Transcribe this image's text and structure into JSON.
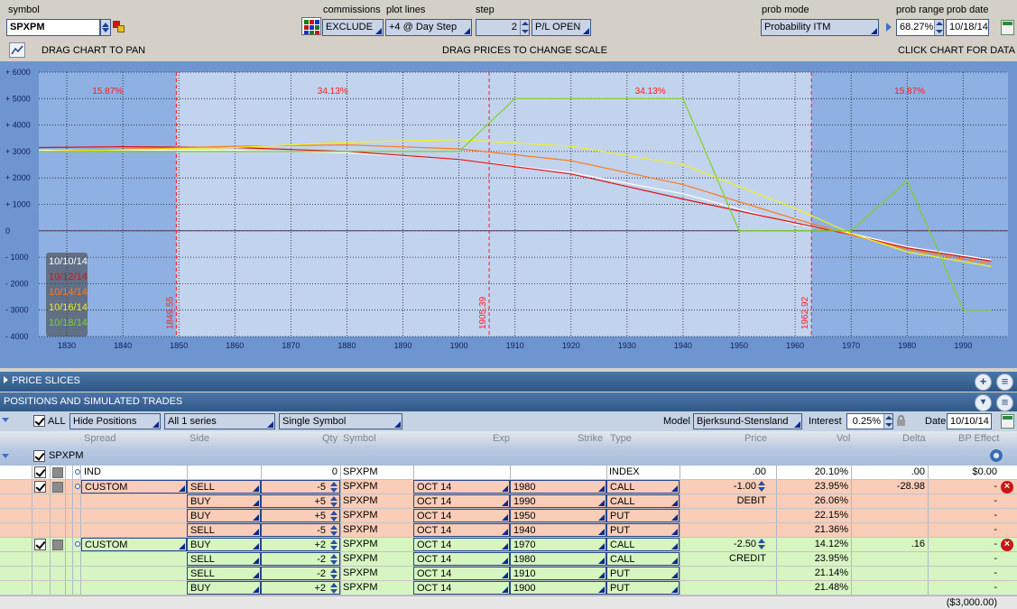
{
  "toolbar": {
    "symbol_label": "symbol",
    "symbol_value": "SPXPM",
    "commissions_label": "commissions",
    "commissions_value": "EXCLUDE",
    "plot_lines_label": "plot lines",
    "plot_lines_value": "+4 @ Day Step",
    "step_label": "step",
    "step_value": "2",
    "pl_value": "P/L OPEN",
    "prob_mode_label": "prob mode",
    "prob_mode_value": "Probability ITM",
    "prob_range_label": "prob range",
    "prob_range_value": "68.27%",
    "prob_date_label": "prob date",
    "prob_date_value": "10/18/14"
  },
  "chart_hints": {
    "pan": "DRAG CHART TO PAN",
    "scale": "DRAG PRICES TO CHANGE SCALE",
    "click": "CLICK CHART FOR DATA"
  },
  "chart_data": {
    "type": "line",
    "x_ticks": [
      "1830",
      "1840",
      "1850",
      "1860",
      "1870",
      "1880",
      "1890",
      "1900",
      "1910",
      "1920",
      "1930",
      "1940",
      "1950",
      "1960",
      "1970",
      "1980",
      "1990"
    ],
    "y_ticks": [
      "+ 6000",
      "+ 5000",
      "+ 4000",
      "+ 3000",
      "+ 2000",
      "+ 1000",
      "0",
      "- 1000",
      "- 2000",
      "- 3000",
      "- 4000"
    ],
    "xlim": [
      1825,
      1998
    ],
    "ylim": [
      -4000,
      6000
    ],
    "probabilities": [
      "15.87%",
      "34.13%",
      "34.13%",
      "15.87%"
    ],
    "prob_lines": [
      "1849.55",
      "1905.39",
      "1962.92"
    ],
    "legend": [
      "10/10/14",
      "10/12/14",
      "10/14/14",
      "10/16/14",
      "10/18/14"
    ],
    "colors": {
      "10/10/14": "#ffffff",
      "10/12/14": "#e01010",
      "10/14/14": "#ff7a1a",
      "10/16/14": "#f0f020",
      "10/18/14": "#7ed321",
      "prob": "#ff1a1a"
    },
    "series": [
      {
        "name": "10/10/14",
        "x": [
          1825,
          1860,
          1880,
          1900,
          1920,
          1940,
          1960,
          1970,
          1980,
          1995
        ],
        "y": [
          3050,
          3050,
          2950,
          2700,
          2200,
          1400,
          250,
          -100,
          -600,
          -1100
        ]
      },
      {
        "name": "10/12/14",
        "x": [
          1825,
          1840,
          1860,
          1880,
          1900,
          1920,
          1940,
          1960,
          1970,
          1980,
          1995
        ],
        "y": [
          3150,
          3180,
          3150,
          3000,
          2700,
          2150,
          1200,
          300,
          -150,
          -650,
          -1150
        ]
      },
      {
        "name": "10/14/14",
        "x": [
          1825,
          1860,
          1880,
          1900,
          1920,
          1940,
          1960,
          1970,
          1980,
          1995
        ],
        "y": [
          3000,
          3200,
          3250,
          3100,
          2650,
          1750,
          450,
          -150,
          -700,
          -1250
        ]
      },
      {
        "name": "10/16/14",
        "x": [
          1825,
          1860,
          1880,
          1900,
          1920,
          1940,
          1960,
          1970,
          1980,
          1995
        ],
        "y": [
          3000,
          3150,
          3350,
          3450,
          3200,
          2500,
          850,
          -100,
          -800,
          -1350
        ]
      },
      {
        "name": "10/18/14",
        "x": [
          1825,
          1900,
          1910,
          1940,
          1950,
          1960,
          1970,
          1980,
          1985,
          1990,
          1995
        ],
        "y": [
          3000,
          3000,
          5000,
          5000,
          0,
          0,
          0,
          1900,
          -500,
          -3000,
          -3000
        ]
      }
    ]
  },
  "slices": {
    "label": "PRICE SLICES"
  },
  "positions": {
    "label": "POSITIONS AND SIMULATED TRADES",
    "all_label": "ALL",
    "hide_positions": "Hide Positions",
    "series": "All 1 series",
    "single_symbol": "Single Symbol",
    "model_label": "Model",
    "model_value": "Bjerksund-Stensland",
    "interest_label": "Interest",
    "interest_value": "0.25%",
    "date_label": "Date",
    "date_value": "10/10/14"
  },
  "columns": {
    "spread": "Spread",
    "side": "Side",
    "qty": "Qty",
    "symbol": "Symbol",
    "exp": "Exp",
    "strike": "Strike",
    "type": "Type",
    "price": "Price",
    "vol": "Vol",
    "delta": "Delta",
    "bp": "BP Effect"
  },
  "group": {
    "symbol": "SPXPM"
  },
  "rows": [
    {
      "spread": "IND",
      "side": "",
      "qty": "0",
      "symbol": "SPXPM",
      "exp": "",
      "strike": "",
      "type": "INDEX",
      "price": ".00",
      "vol": "20.10%",
      "delta": ".00",
      "bp": "$0.00"
    },
    {
      "spread": "CUSTOM",
      "side": "SELL",
      "qty": "-5",
      "symbol": "SPXPM",
      "exp": "OCT 14",
      "strike": "1980",
      "type": "CALL",
      "price": "-1.00",
      "vol": "23.95%",
      "delta": "-28.98",
      "bp": "-"
    },
    {
      "spread": "",
      "side": "BUY",
      "qty": "+5",
      "symbol": "SPXPM",
      "exp": "OCT 14",
      "strike": "1990",
      "type": "CALL",
      "price": "DEBIT",
      "vol": "26.06%",
      "delta": "",
      "bp": "-"
    },
    {
      "spread": "",
      "side": "BUY",
      "qty": "+5",
      "symbol": "SPXPM",
      "exp": "OCT 14",
      "strike": "1950",
      "type": "PUT",
      "price": "",
      "vol": "22.15%",
      "delta": "",
      "bp": "-"
    },
    {
      "spread": "",
      "side": "SELL",
      "qty": "-5",
      "symbol": "SPXPM",
      "exp": "OCT 14",
      "strike": "1940",
      "type": "PUT",
      "price": "",
      "vol": "21.36%",
      "delta": "",
      "bp": "-"
    },
    {
      "spread": "CUSTOM",
      "side": "BUY",
      "qty": "+2",
      "symbol": "SPXPM",
      "exp": "OCT 14",
      "strike": "1970",
      "type": "CALL",
      "price": "-2.50",
      "vol": "14.12%",
      "delta": ".16",
      "bp": "-"
    },
    {
      "spread": "",
      "side": "SELL",
      "qty": "-2",
      "symbol": "SPXPM",
      "exp": "OCT 14",
      "strike": "1980",
      "type": "CALL",
      "price": "CREDIT",
      "vol": "23.95%",
      "delta": "",
      "bp": "-"
    },
    {
      "spread": "",
      "side": "SELL",
      "qty": "-2",
      "symbol": "SPXPM",
      "exp": "OCT 14",
      "strike": "1910",
      "type": "PUT",
      "price": "",
      "vol": "21.14%",
      "delta": "",
      "bp": "-"
    },
    {
      "spread": "",
      "side": "BUY",
      "qty": "+2",
      "symbol": "SPXPM",
      "exp": "OCT 14",
      "strike": "1900",
      "type": "PUT",
      "price": "",
      "vol": "21.48%",
      "delta": "",
      "bp": "-"
    }
  ],
  "total": {
    "bp": "($3,000.00)"
  },
  "row_colors": {
    "index": "#ffffff",
    "bfly": "#f9cdb8",
    "condor": "#d6f5c0"
  }
}
